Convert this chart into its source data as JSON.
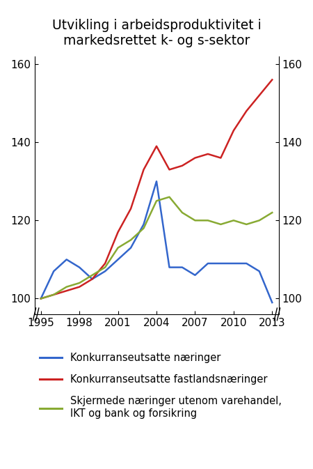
{
  "title": "Utvikling i arbeidsproduktivitet i\nmarkedsrettet k- og s-sektor",
  "years": [
    1995,
    1996,
    1997,
    1998,
    1999,
    2000,
    2001,
    2002,
    2003,
    2004,
    2005,
    2006,
    2007,
    2008,
    2009,
    2010,
    2011,
    2012,
    2013
  ],
  "blue_line": [
    100,
    107,
    110,
    108,
    105,
    107,
    110,
    113,
    119,
    130,
    108,
    108,
    106,
    109,
    109,
    109,
    109,
    107,
    99
  ],
  "red_line": [
    100,
    101,
    102,
    103,
    105,
    109,
    117,
    123,
    133,
    139,
    133,
    134,
    136,
    137,
    136,
    143,
    148,
    152,
    156
  ],
  "green_line": [
    100,
    101,
    103,
    104,
    106,
    108,
    113,
    115,
    118,
    125,
    126,
    122,
    120,
    120,
    119,
    120,
    119,
    120,
    122
  ],
  "ylim": [
    96,
    162
  ],
  "yticks": [
    100,
    120,
    140,
    160
  ],
  "xticks": [
    1995,
    1998,
    2001,
    2004,
    2007,
    2010,
    2013
  ],
  "xlim": [
    1994.5,
    2013.5
  ],
  "blue_color": "#3366cc",
  "red_color": "#cc2222",
  "green_color": "#88aa33",
  "legend_labels": [
    "Konkurranseutsatte næringer",
    "Konkurranseutsatte fastlandsnæringer",
    "Skjermede næringer utenom varehandel,\nIKT og bank og forsikring"
  ],
  "background_color": "#ffffff",
  "title_fontsize": 13.5,
  "tick_fontsize": 11,
  "legend_fontsize": 10.5,
  "linewidth": 1.8
}
